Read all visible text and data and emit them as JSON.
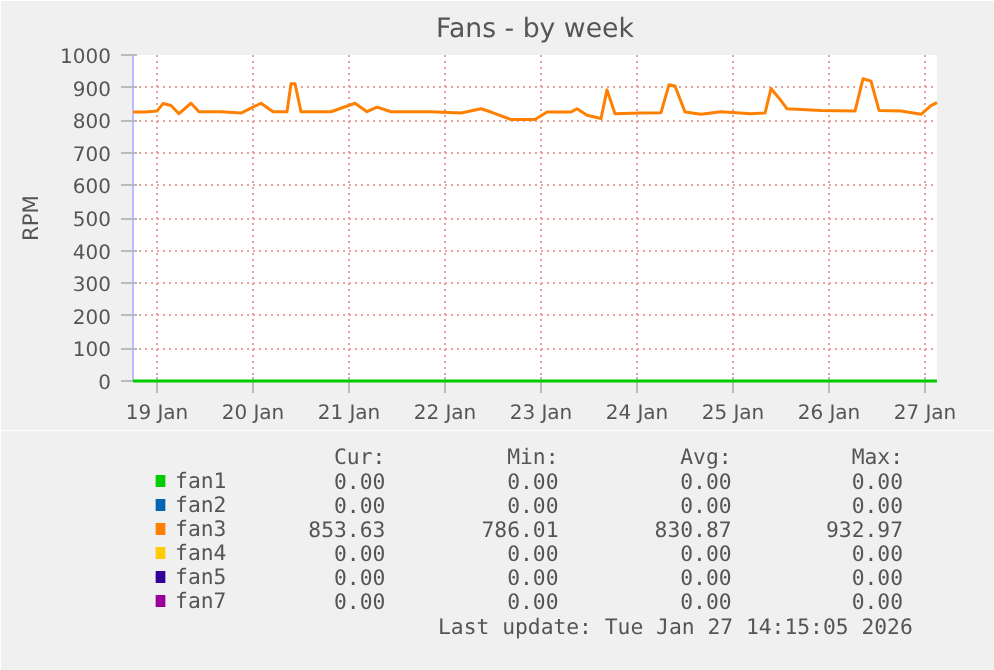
{
  "chart_data": {
    "type": "line",
    "title": "Fans - by week",
    "ylabel": "RPM",
    "xlim": [
      "2026-01-18T18:00",
      "2026-01-27T03:00"
    ],
    "xticks": [
      {
        "value": "2026-01-19",
        "label": "19 Jan"
      },
      {
        "value": "2026-01-20",
        "label": "20 Jan"
      },
      {
        "value": "2026-01-21",
        "label": "21 Jan"
      },
      {
        "value": "2026-01-22",
        "label": "22 Jan"
      },
      {
        "value": "2026-01-23",
        "label": "23 Jan"
      },
      {
        "value": "2026-01-24",
        "label": "24 Jan"
      },
      {
        "value": "2026-01-25",
        "label": "25 Jan"
      },
      {
        "value": "2026-01-26",
        "label": "26 Jan"
      },
      {
        "value": "2026-01-27",
        "label": "27 Jan"
      }
    ],
    "ylim": [
      0,
      1000
    ],
    "yticks": [
      0,
      100,
      200,
      300,
      400,
      500,
      600,
      700,
      800,
      900,
      1000
    ],
    "grid": true,
    "legend": "bottom",
    "marker": "none",
    "line_style": "solid",
    "series": [
      {
        "name": "fan1",
        "color": "#00cc00",
        "x": [
          "2026-01-18T18:00",
          "2026-01-27T03:00"
        ],
        "values": [
          0,
          0
        ]
      },
      {
        "name": "fan2",
        "color": "#0066b3"
      },
      {
        "name": "fan3",
        "color": "#ff8000",
        "x": [
          "2026-01-18T18:00",
          "2026-01-18T21:00",
          "2026-01-19T00:00",
          "2026-01-19T01:30",
          "2026-01-19T03:30",
          "2026-01-19T05:30",
          "2026-01-19T08:30",
          "2026-01-19T10:30",
          "2026-01-19T16:00",
          "2026-01-19T21:00",
          "2026-01-20T02:00",
          "2026-01-20T05:00",
          "2026-01-20T08:30",
          "2026-01-20T09:30",
          "2026-01-20T10:30",
          "2026-01-20T12:00",
          "2026-01-20T19:30",
          "2026-01-21T01:30",
          "2026-01-21T04:30",
          "2026-01-21T07:00",
          "2026-01-21T10:30",
          "2026-01-21T20:30",
          "2026-01-22T04:00",
          "2026-01-22T09:00",
          "2026-01-22T11:30",
          "2026-01-22T16:30",
          "2026-01-22T22:30",
          "2026-01-23T01:30",
          "2026-01-23T07:30",
          "2026-01-23T09:00",
          "2026-01-23T11:30",
          "2026-01-23T15:00",
          "2026-01-23T16:30",
          "2026-01-23T18:30",
          "2026-01-24T01:00",
          "2026-01-24T06:00",
          "2026-01-24T08:00",
          "2026-01-24T09:30",
          "2026-01-24T12:00",
          "2026-01-24T16:00",
          "2026-01-24T21:00",
          "2026-01-25T04:30",
          "2026-01-25T08:00",
          "2026-01-25T09:30",
          "2026-01-25T12:00",
          "2026-01-25T13:30",
          "2026-01-25T22:00",
          "2026-01-26T06:30",
          "2026-01-26T08:30",
          "2026-01-26T10:30",
          "2026-01-26T12:30",
          "2026-01-26T18:00",
          "2026-01-26T23:00",
          "2026-01-27T01:30",
          "2026-01-27T03:00"
        ],
        "values": [
          825,
          825,
          828,
          851,
          845,
          820,
          852,
          826,
          826,
          822,
          852,
          826,
          826,
          912,
          912,
          826,
          826,
          852,
          826,
          840,
          826,
          826,
          822,
          835,
          825,
          802,
          802,
          825,
          825,
          835,
          815,
          805,
          893,
          820,
          822,
          823,
          909,
          905,
          825,
          818,
          826,
          820,
          822,
          897,
          860,
          835,
          830,
          828,
          927,
          920,
          830,
          828,
          818,
          845,
          854
        ]
      },
      {
        "name": "fan4",
        "color": "#ffcc00"
      },
      {
        "name": "fan5",
        "color": "#330099"
      },
      {
        "name": "fan7",
        "color": "#990099"
      }
    ],
    "annotations": [
      "Cur:",
      "Min:",
      "Avg:",
      "Max:",
      "0.00",
      "0.00",
      "0.00",
      "0.00",
      "0.00",
      "0.00",
      "0.00",
      "0.00",
      "853.63",
      "786.01",
      "830.87",
      "932.97",
      "0.00",
      "0.00",
      "0.00",
      "0.00",
      "0.00",
      "0.00",
      "0.00",
      "0.00",
      "0.00",
      "0.00",
      "0.00",
      "0.00",
      "Last update: Tue Jan 27 14:15:05 2026"
    ]
  }
}
